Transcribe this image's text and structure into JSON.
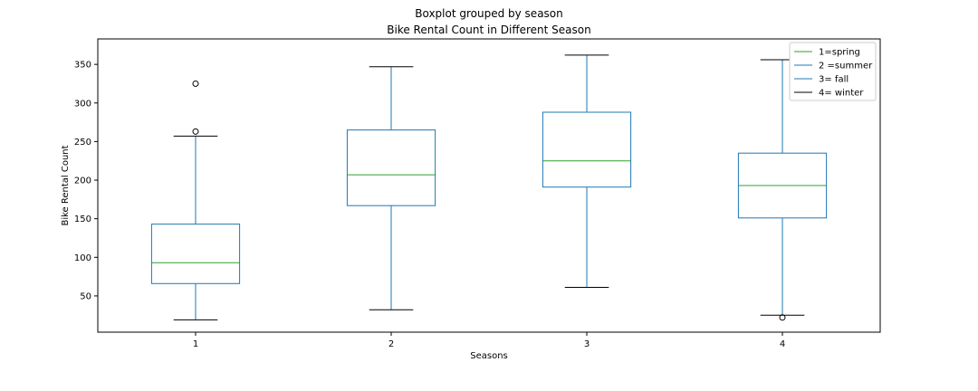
{
  "chart_data": {
    "type": "boxplot",
    "suptitle": "Boxplot grouped by season",
    "title": "Bike Rental Count in Different Season",
    "xlabel": "Seasons",
    "ylabel": "Bike Rental Count",
    "categories": [
      "1",
      "2",
      "3",
      "4"
    ],
    "ylim": [
      3,
      383
    ],
    "yticks": [
      50,
      100,
      150,
      200,
      250,
      300,
      350
    ],
    "grid": false,
    "legend_position": "top-right",
    "legend": [
      "1=spring",
      "2 =summer",
      "3= fall",
      "4= winter"
    ],
    "colors": {
      "box": "#1f77b4",
      "whisker": "#1f77b4",
      "median": "#2ca02c",
      "cap": "#000000",
      "flier": "#000000"
    },
    "boxes": [
      {
        "category": "1",
        "whisker_low": 19,
        "q1": 66,
        "median": 93,
        "q3": 143,
        "whisker_high": 257,
        "outliers": [
          263,
          325
        ]
      },
      {
        "category": "2",
        "whisker_low": 32,
        "q1": 167,
        "median": 207,
        "q3": 265,
        "whisker_high": 347,
        "outliers": []
      },
      {
        "category": "3",
        "whisker_low": 61,
        "q1": 191,
        "median": 225,
        "q3": 288,
        "whisker_high": 362,
        "outliers": []
      },
      {
        "category": "4",
        "whisker_low": 25,
        "q1": 151,
        "median": 193,
        "q3": 235,
        "whisker_high": 356,
        "outliers": [
          22
        ]
      }
    ]
  }
}
